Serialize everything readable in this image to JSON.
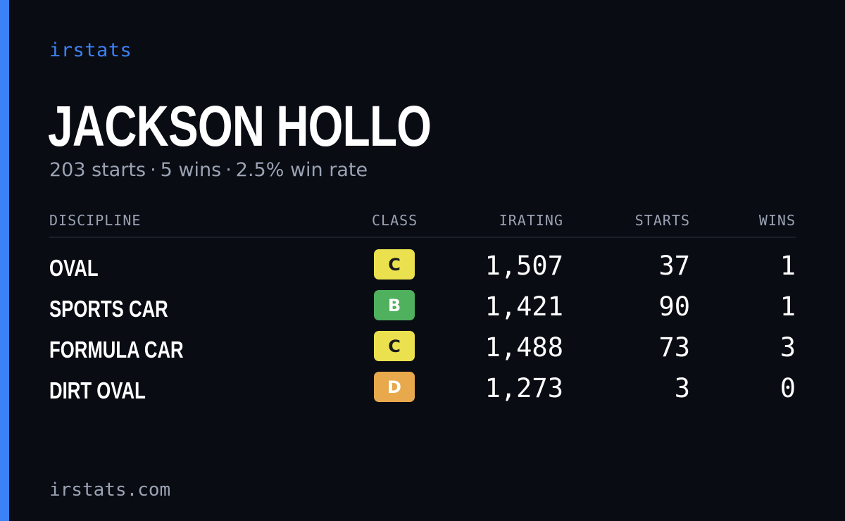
{
  "brand": "irstats",
  "player": {
    "name": "JACKSON HOLLO",
    "summary": {
      "starts": "203 starts",
      "wins": "5 wins",
      "win_rate": "2.5% win rate",
      "separator": "·"
    }
  },
  "table": {
    "headers": {
      "discipline": "DISCIPLINE",
      "class": "CLASS",
      "irating": "IRATING",
      "starts": "STARTS",
      "wins": "WINS"
    },
    "rows": [
      {
        "discipline": "OVAL",
        "class": "C",
        "class_color": "#ebe14f",
        "class_text_color": "#1a1a1a",
        "irating": "1,507",
        "starts": "37",
        "wins": "1"
      },
      {
        "discipline": "SPORTS CAR",
        "class": "B",
        "class_color": "#4fb05e",
        "class_text_color": "#ffffff",
        "irating": "1,421",
        "starts": "90",
        "wins": "1"
      },
      {
        "discipline": "FORMULA CAR",
        "class": "C",
        "class_color": "#ebe14f",
        "class_text_color": "#1a1a1a",
        "irating": "1,488",
        "starts": "73",
        "wins": "3"
      },
      {
        "discipline": "DIRT OVAL",
        "class": "D",
        "class_color": "#e8a84c",
        "class_text_color": "#ffffff",
        "irating": "1,273",
        "starts": "3",
        "wins": "0"
      }
    ]
  },
  "footer": "irstats.com",
  "colors": {
    "accent": "#3b82f6",
    "background": "#0a0c13",
    "muted_text": "#9aa2b3"
  }
}
